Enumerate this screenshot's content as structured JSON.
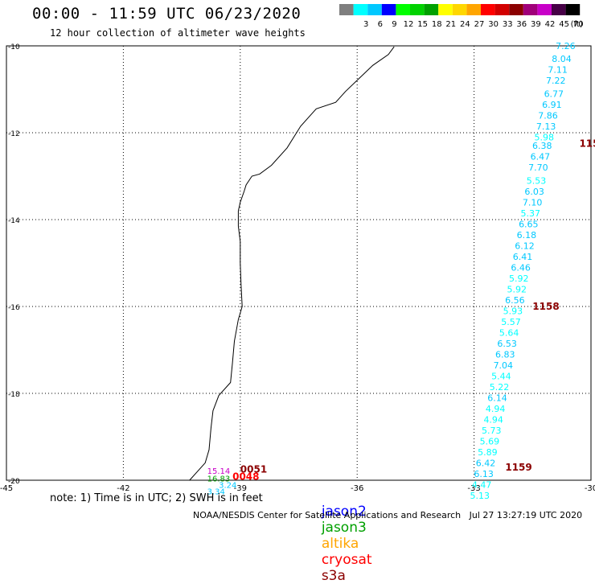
{
  "header": {
    "title": "00:00 - 11:59 UTC 06/23/2020",
    "subtitle": "12 hour collection of altimeter wave heights"
  },
  "legend": {
    "unit": "(ft)",
    "bins": [
      {
        "label": "",
        "color": "#7f7f7f"
      },
      {
        "label": "3",
        "color": "#00ffff"
      },
      {
        "label": "6",
        "color": "#00c8ff"
      },
      {
        "label": "9",
        "color": "#0000ff"
      },
      {
        "label": "12",
        "color": "#00ff00"
      },
      {
        "label": "15",
        "color": "#00d200"
      },
      {
        "label": "18",
        "color": "#00a000"
      },
      {
        "label": "21",
        "color": "#ffff00"
      },
      {
        "label": "24",
        "color": "#ffd700"
      },
      {
        "label": "27",
        "color": "#ffa500"
      },
      {
        "label": "30",
        "color": "#ff0000"
      },
      {
        "label": "33",
        "color": "#d20000"
      },
      {
        "label": "36",
        "color": "#8b0000"
      },
      {
        "label": "39",
        "color": "#a0007a"
      },
      {
        "label": "42",
        "color": "#c800c8"
      },
      {
        "label": "45",
        "color": "#460046"
      },
      {
        "label": "70",
        "color": "#000000"
      }
    ]
  },
  "map": {
    "lon_range": [
      -45,
      -30
    ],
    "lat_range": [
      -20,
      -10
    ],
    "lon_ticks": [
      {
        "value": -45,
        "label": "-45"
      },
      {
        "value": -42,
        "label": "-42"
      },
      {
        "value": -39,
        "label": "-39"
      },
      {
        "value": -36,
        "label": "-36"
      },
      {
        "value": -33,
        "label": "-33"
      },
      {
        "value": -30,
        "label": "-30"
      }
    ],
    "lat_ticks": [
      {
        "value": -10,
        "label": "-10"
      },
      {
        "value": -12,
        "label": "-12"
      },
      {
        "value": -14,
        "label": "-14"
      },
      {
        "value": -16,
        "label": "-16"
      },
      {
        "value": -18,
        "label": "-18"
      },
      {
        "value": -20,
        "label": "-20"
      }
    ],
    "coastline": [
      [
        -35.05,
        -10.02
      ],
      [
        -35.2,
        -10.2
      ],
      [
        -35.6,
        -10.45
      ],
      [
        -35.95,
        -10.75
      ],
      [
        -36.3,
        -11.05
      ],
      [
        -36.55,
        -11.3
      ],
      [
        -37.05,
        -11.45
      ],
      [
        -37.25,
        -11.65
      ],
      [
        -37.45,
        -11.85
      ],
      [
        -37.8,
        -12.35
      ],
      [
        -38.2,
        -12.75
      ],
      [
        -38.5,
        -12.95
      ],
      [
        -38.7,
        -13.0
      ],
      [
        -38.85,
        -13.2
      ],
      [
        -38.9,
        -13.35
      ],
      [
        -39.0,
        -13.6
      ],
      [
        -39.05,
        -13.8
      ],
      [
        -39.05,
        -14.15
      ],
      [
        -39.0,
        -14.5
      ],
      [
        -39.0,
        -15.0
      ],
      [
        -38.98,
        -15.5
      ],
      [
        -38.95,
        -16.0
      ],
      [
        -39.05,
        -16.3
      ],
      [
        -39.15,
        -16.8
      ],
      [
        -39.2,
        -17.3
      ],
      [
        -39.25,
        -17.75
      ],
      [
        -39.55,
        -18.05
      ],
      [
        -39.7,
        -18.4
      ],
      [
        -39.75,
        -18.8
      ],
      [
        -39.8,
        -19.3
      ],
      [
        -39.9,
        -19.6
      ],
      [
        -40.1,
        -19.8
      ],
      [
        -40.3,
        -20.0
      ]
    ],
    "points": [
      {
        "lon": -30.4,
        "lat": -10.0,
        "label": "7.26",
        "color": "#00c8ff"
      },
      {
        "lon": -30.5,
        "lat": -10.3,
        "label": "8.04",
        "color": "#00c8ff"
      },
      {
        "lon": -30.6,
        "lat": -10.55,
        "label": "7.11",
        "color": "#00c8ff"
      },
      {
        "lon": -30.65,
        "lat": -10.8,
        "label": "7.22",
        "color": "#00c8ff"
      },
      {
        "lon": -30.7,
        "lat": -11.1,
        "label": "6.77",
        "color": "#00c8ff"
      },
      {
        "lon": -30.75,
        "lat": -11.35,
        "label": "6.91",
        "color": "#00c8ff"
      },
      {
        "lon": -30.85,
        "lat": -11.6,
        "label": "7.86",
        "color": "#00c8ff"
      },
      {
        "lon": -30.9,
        "lat": -11.85,
        "label": "7.13",
        "color": "#00c8ff"
      },
      {
        "lon": -30.95,
        "lat": -12.1,
        "label": "5.98",
        "color": "#00ffff"
      },
      {
        "lon": -31.0,
        "lat": -12.3,
        "label": "6.38",
        "color": "#00c8ff"
      },
      {
        "lon": -31.05,
        "lat": -12.55,
        "label": "6.47",
        "color": "#00c8ff"
      },
      {
        "lon": -31.1,
        "lat": -12.8,
        "label": "7.70",
        "color": "#00c8ff"
      },
      {
        "lon": -31.15,
        "lat": -13.1,
        "label": "5.53",
        "color": "#00ffff"
      },
      {
        "lon": -31.2,
        "lat": -13.35,
        "label": "6.03",
        "color": "#00c8ff"
      },
      {
        "lon": -31.25,
        "lat": -13.6,
        "label": "7.10",
        "color": "#00c8ff"
      },
      {
        "lon": -31.3,
        "lat": -13.85,
        "label": "5.37",
        "color": "#00ffff"
      },
      {
        "lon": -31.35,
        "lat": -14.1,
        "label": "6.65",
        "color": "#00c8ff"
      },
      {
        "lon": -31.4,
        "lat": -14.35,
        "label": "6.18",
        "color": "#00c8ff"
      },
      {
        "lon": -31.45,
        "lat": -14.6,
        "label": "6.12",
        "color": "#00c8ff"
      },
      {
        "lon": -31.5,
        "lat": -14.85,
        "label": "6.41",
        "color": "#00c8ff"
      },
      {
        "lon": -31.55,
        "lat": -15.1,
        "label": "6.46",
        "color": "#00c8ff"
      },
      {
        "lon": -31.6,
        "lat": -15.35,
        "label": "5.92",
        "color": "#00ffff"
      },
      {
        "lon": -31.65,
        "lat": -15.6,
        "label": "5.92",
        "color": "#00ffff"
      },
      {
        "lon": -31.7,
        "lat": -15.85,
        "label": "6.56",
        "color": "#00c8ff"
      },
      {
        "lon": -31.75,
        "lat": -16.1,
        "label": "5.93",
        "color": "#00ffff"
      },
      {
        "lon": -31.8,
        "lat": -16.35,
        "label": "5.57",
        "color": "#00ffff"
      },
      {
        "lon": -31.85,
        "lat": -16.6,
        "label": "5.64",
        "color": "#00ffff"
      },
      {
        "lon": -31.9,
        "lat": -16.85,
        "label": "6.53",
        "color": "#00c8ff"
      },
      {
        "lon": -31.95,
        "lat": -17.1,
        "label": "6.83",
        "color": "#00c8ff"
      },
      {
        "lon": -32.0,
        "lat": -17.35,
        "label": "7.04",
        "color": "#00c8ff"
      },
      {
        "lon": -32.05,
        "lat": -17.6,
        "label": "5.44",
        "color": "#00ffff"
      },
      {
        "lon": -32.1,
        "lat": -17.85,
        "label": "5.22",
        "color": "#00ffff"
      },
      {
        "lon": -32.15,
        "lat": -18.1,
        "label": "6.14",
        "color": "#00c8ff"
      },
      {
        "lon": -32.2,
        "lat": -18.35,
        "label": "4.94",
        "color": "#00ffff"
      },
      {
        "lon": -32.25,
        "lat": -18.6,
        "label": "4.94",
        "color": "#00ffff"
      },
      {
        "lon": -32.3,
        "lat": -18.85,
        "label": "5.73",
        "color": "#00ffff"
      },
      {
        "lon": -32.35,
        "lat": -19.1,
        "label": "5.69",
        "color": "#00ffff"
      },
      {
        "lon": -32.4,
        "lat": -19.35,
        "label": "5.89",
        "color": "#00ffff"
      },
      {
        "lon": -32.45,
        "lat": -19.6,
        "label": "6.42",
        "color": "#00c8ff"
      },
      {
        "lon": -32.5,
        "lat": -19.85,
        "label": "6.13",
        "color": "#00c8ff"
      },
      {
        "lon": -32.55,
        "lat": -20.1,
        "label": "4.47",
        "color": "#00ffff"
      },
      {
        "lon": -32.6,
        "lat": -20.35,
        "label": "5.13",
        "color": "#00ffff"
      }
    ],
    "time_labels": [
      {
        "lon": -30.3,
        "lat": -12.25,
        "label": "115",
        "color": "#8b0000"
      },
      {
        "lon": -31.5,
        "lat": -16.0,
        "label": "1158",
        "color": "#8b0000"
      },
      {
        "lon": -32.2,
        "lat": -19.7,
        "label": "1159",
        "color": "#8b0000"
      },
      {
        "lon": -39.0,
        "lat": -19.75,
        "label": "0051",
        "color": "#8b0000"
      },
      {
        "lon": -39.2,
        "lat": -19.92,
        "label": "0048",
        "color": "#ff0000"
      }
    ],
    "cluster_labels": [
      {
        "lon": -39.85,
        "lat": -19.78,
        "label": "15.14",
        "color": "#c800c8"
      },
      {
        "lon": -39.85,
        "lat": -19.95,
        "label": "16.83",
        "color": "#00a000"
      },
      {
        "lon": -39.55,
        "lat": -20.1,
        "label": "3.24",
        "color": "#00c8ff"
      },
      {
        "lon": -39.85,
        "lat": -20.25,
        "label": "3.34",
        "color": "#00c8ff"
      }
    ]
  },
  "footer": {
    "note": "note: 1) Time is in UTC; 2) SWH is in feet",
    "satellites": [
      {
        "name": "jason2",
        "color": "#0000ff"
      },
      {
        "name": "jason3",
        "color": "#00a000"
      },
      {
        "name": "altika",
        "color": "#ffa500"
      },
      {
        "name": "cryosat",
        "color": "#ff0000"
      },
      {
        "name": "s3a",
        "color": "#8b0000"
      }
    ],
    "credit": "NOAA/NESDIS Center for Satellite Applications and Research   Jul 27 13:27:19 UTC 2020"
  }
}
